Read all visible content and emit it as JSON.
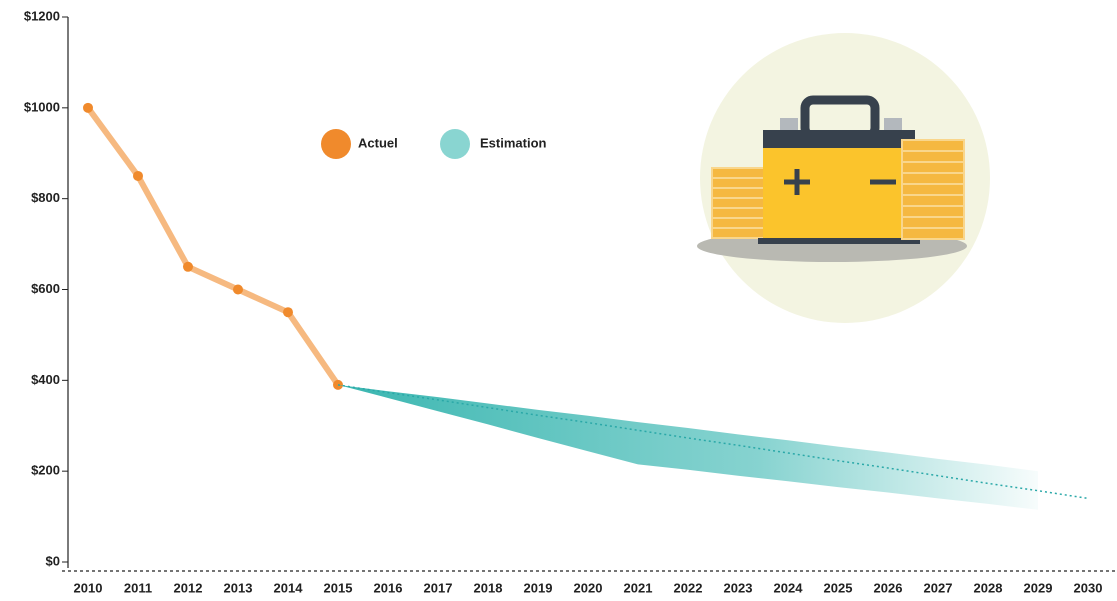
{
  "chart_data": {
    "type": "line",
    "x": [
      2010,
      2011,
      2012,
      2013,
      2014,
      2015,
      2016,
      2017,
      2018,
      2019,
      2020,
      2021,
      2022,
      2023,
      2024,
      2025,
      2026,
      2027,
      2028,
      2029,
      2030
    ],
    "series": [
      {
        "name": "Actuel",
        "color": "#f08a2c",
        "values": [
          1000,
          850,
          650,
          600,
          550,
          390,
          null,
          null,
          null,
          null,
          null,
          null,
          null,
          null,
          null,
          null,
          null,
          null,
          null,
          null,
          null
        ]
      },
      {
        "name": "Estimation",
        "color": "#6ccac6",
        "values": [
          null,
          null,
          null,
          null,
          null,
          390,
          373,
          357,
          340,
          323,
          307,
          290,
          273,
          257,
          240,
          223,
          207,
          190,
          173,
          157,
          140
        ],
        "upper": [
          null,
          null,
          null,
          null,
          null,
          390,
          376,
          363,
          349,
          335,
          322,
          308,
          295,
          281,
          268,
          254,
          241,
          227,
          214,
          200,
          null
        ],
        "lower": [
          null,
          null,
          null,
          null,
          null,
          390,
          361,
          332,
          303,
          273,
          244,
          215,
          203,
          190,
          178,
          165,
          153,
          140,
          128,
          115,
          null
        ]
      }
    ],
    "xlim": [
      2010,
      2030
    ],
    "xticks": [
      2010,
      2011,
      2012,
      2013,
      2014,
      2015,
      2016,
      2017,
      2018,
      2019,
      2020,
      2021,
      2022,
      2023,
      2024,
      2025,
      2026,
      2027,
      2028,
      2029,
      2030
    ],
    "ylim": [
      0,
      1200
    ],
    "yticks": [
      {
        "value": 0,
        "label": "$0"
      },
      {
        "value": 200,
        "label": "$200"
      },
      {
        "value": 400,
        "label": "$400"
      },
      {
        "value": 600,
        "label": "$600"
      },
      {
        "value": 800,
        "label": "$800"
      },
      {
        "value": 1000,
        "label": "$1000"
      },
      {
        "value": 1200,
        "label": "$1200"
      }
    ]
  }
}
